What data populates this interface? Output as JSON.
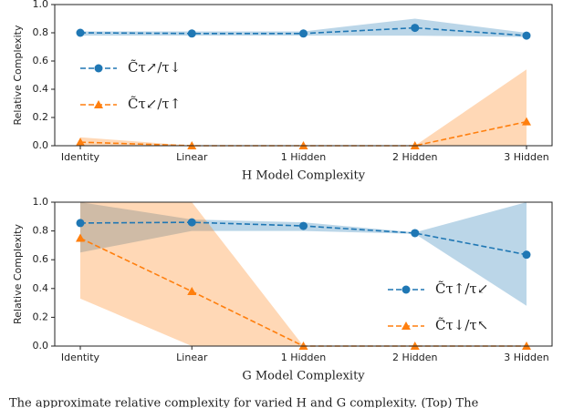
{
  "chart_data": [
    {
      "type": "line",
      "xlabel": "H Model Complexity",
      "ylabel": "Relative Complexity",
      "categories": [
        "Identity",
        "Linear",
        "1 Hidden",
        "2 Hidden",
        "3 Hidden"
      ],
      "ylim": [
        0,
        1
      ],
      "yticks": [
        {
          "value": 0,
          "label": "0.0"
        },
        {
          "value": 0.2,
          "label": "0.2"
        },
        {
          "value": 0.4,
          "label": "0.4"
        },
        {
          "value": 0.6,
          "label": "0.6"
        },
        {
          "value": 0.8,
          "label": "0.8"
        },
        {
          "value": 1,
          "label": "1.0"
        }
      ],
      "legend": "upper left",
      "series": [
        {
          "name": "C̃τ↗/τ↓",
          "color": "#1f77b4",
          "marker": "circle",
          "values": [
            0.8,
            0.795,
            0.795,
            0.835,
            0.78
          ],
          "lower": [
            0.78,
            0.78,
            0.78,
            0.78,
            0.77
          ],
          "upper": [
            0.81,
            0.81,
            0.81,
            0.9,
            0.8
          ]
        },
        {
          "name": "C̃τ↙/τ↑",
          "color": "#ff7f0e",
          "marker": "triangle",
          "values": [
            0.025,
            0,
            0,
            0,
            0.17
          ],
          "lower": [
            0,
            0,
            0,
            0,
            0
          ],
          "upper": [
            0.06,
            0,
            0,
            0,
            0.54
          ]
        }
      ]
    },
    {
      "type": "line",
      "xlabel": "G Model Complexity",
      "ylabel": "Relative Complexity",
      "categories": [
        "Identity",
        "Linear",
        "1 Hidden",
        "2 Hidden",
        "3 Hidden"
      ],
      "ylim": [
        0,
        1
      ],
      "yticks": [
        {
          "value": 0,
          "label": "0.0"
        },
        {
          "value": 0.2,
          "label": "0.2"
        },
        {
          "value": 0.4,
          "label": "0.4"
        },
        {
          "value": 0.6,
          "label": "0.6"
        },
        {
          "value": 0.8,
          "label": "0.8"
        },
        {
          "value": 1,
          "label": "1.0"
        }
      ],
      "legend": "lower right",
      "series": [
        {
          "name": "C̃τ↑/τ↙",
          "color": "#1f77b4",
          "marker": "circle",
          "values": [
            0.855,
            0.86,
            0.835,
            0.785,
            0.635
          ],
          "lower": [
            0.65,
            0.8,
            0.8,
            0.78,
            0.28
          ],
          "upper": [
            1,
            0.88,
            0.86,
            0.79,
            1
          ]
        },
        {
          "name": "C̃τ↓/τ↖",
          "color": "#ff7f0e",
          "marker": "triangle",
          "values": [
            0.75,
            0.38,
            0,
            0,
            0
          ],
          "lower": [
            0.33,
            0,
            0,
            0,
            0
          ],
          "upper": [
            1,
            1,
            0,
            0,
            0
          ]
        }
      ]
    }
  ],
  "caption": "The approximate relative complexity for varied H and G complexity. (Top) The"
}
